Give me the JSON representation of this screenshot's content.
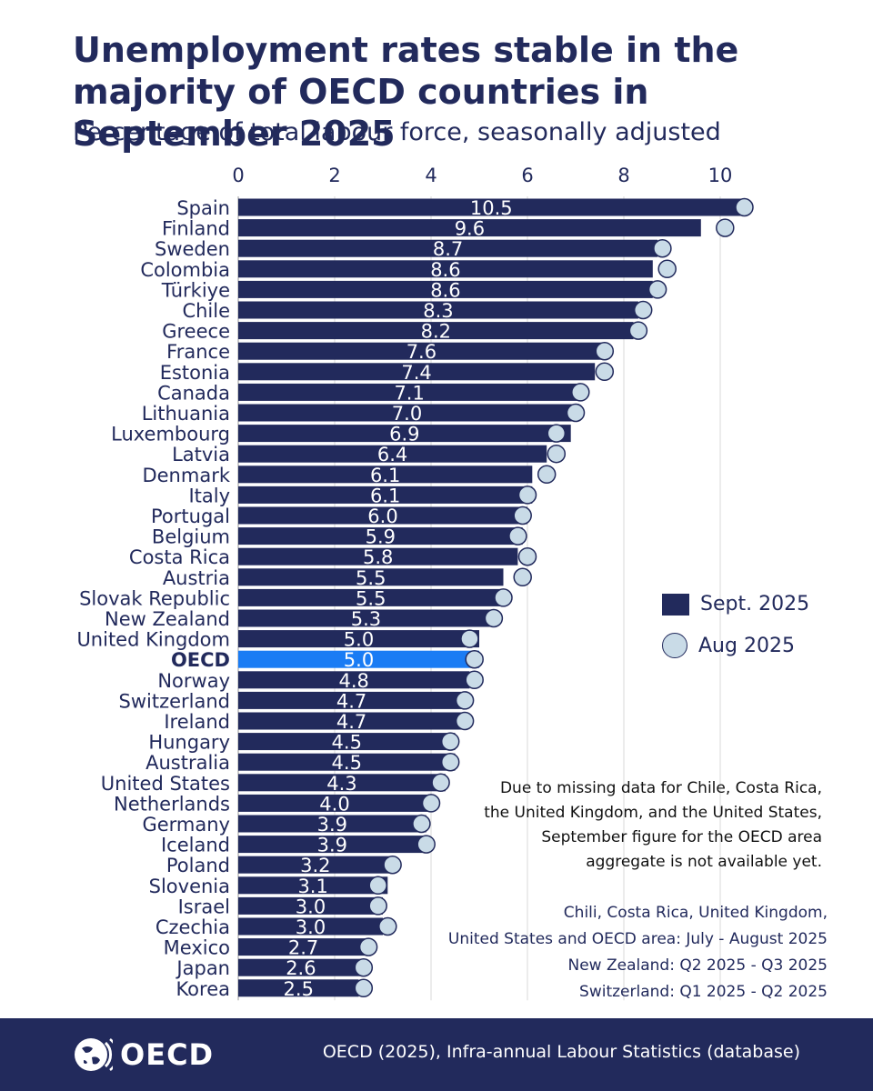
{
  "header": {
    "title": "Unemployment rates stable in the majority of OECD countries in September 2025",
    "subtitle": "Percentage of total labour force, seasonally adjusted"
  },
  "legend": {
    "bar_label": "Sept. 2025",
    "dot_label": "Aug 2025"
  },
  "note": [
    "Due to missing data for Chile, Costa Rica,",
    "the United Kingdom, and the United States,",
    "September figure for the OECD area",
    "aggregate is not available yet."
  ],
  "sources": [
    "Chili, Costa Rica, United Kingdom,",
    "United States and OECD area: July - August 2025",
    "New Zealand: Q2 2025 - Q3 2025",
    "Switzerland: Q1 2025 - Q2 2025"
  ],
  "footer": {
    "logo_text": "OECD",
    "citation": "OECD (2025), Infra-annual Labour Statistics (database)"
  },
  "colors": {
    "bar": "#222a5c",
    "highlight_bar": "#1a7cf4",
    "dot_fill": "#c9dbe7",
    "footer": "#222a5c"
  },
  "chart_data": {
    "type": "bar",
    "orientation": "horizontal",
    "xlim": [
      0,
      11
    ],
    "ticks": [
      0,
      2,
      4,
      6,
      8,
      10
    ],
    "grid": true,
    "legend_position": "right",
    "highlight": "OECD",
    "categories": [
      "Spain",
      "Finland",
      "Sweden",
      "Colombia",
      "Türkiye",
      "Chile",
      "Greece",
      "France",
      "Estonia",
      "Canada",
      "Lithuania",
      "Luxembourg",
      "Latvia",
      "Denmark",
      "Italy",
      "Portugal",
      "Belgium",
      "Costa Rica",
      "Austria",
      "Slovak Republic",
      "New Zealand",
      "United Kingdom",
      "OECD",
      "Norway",
      "Switzerland",
      "Ireland",
      "Hungary",
      "Australia",
      "United States",
      "Netherlands",
      "Germany",
      "Iceland",
      "Poland",
      "Slovenia",
      "Israel",
      "Czechia",
      "Mexico",
      "Japan",
      "Korea"
    ],
    "series": [
      {
        "name": "Sept. 2025",
        "values": [
          10.5,
          9.6,
          8.7,
          8.6,
          8.6,
          8.3,
          8.2,
          7.6,
          7.4,
          7.1,
          7.0,
          6.9,
          6.4,
          6.1,
          6.1,
          6.0,
          5.9,
          5.8,
          5.5,
          5.5,
          5.3,
          5.0,
          5.0,
          4.8,
          4.7,
          4.7,
          4.5,
          4.5,
          4.3,
          4.0,
          3.9,
          3.9,
          3.2,
          3.1,
          3.0,
          3.0,
          2.7,
          2.6,
          2.5
        ]
      },
      {
        "name": "Aug 2025",
        "values": [
          10.5,
          10.1,
          8.8,
          8.9,
          8.7,
          8.4,
          8.3,
          7.6,
          7.6,
          7.1,
          7.0,
          6.6,
          6.6,
          6.4,
          6.0,
          5.9,
          5.8,
          6.0,
          5.9,
          5.5,
          5.3,
          4.8,
          4.9,
          4.9,
          4.7,
          4.7,
          4.4,
          4.4,
          4.2,
          4.0,
          3.8,
          3.9,
          3.2,
          2.9,
          2.9,
          3.1,
          2.7,
          2.6,
          2.6
        ]
      }
    ]
  }
}
